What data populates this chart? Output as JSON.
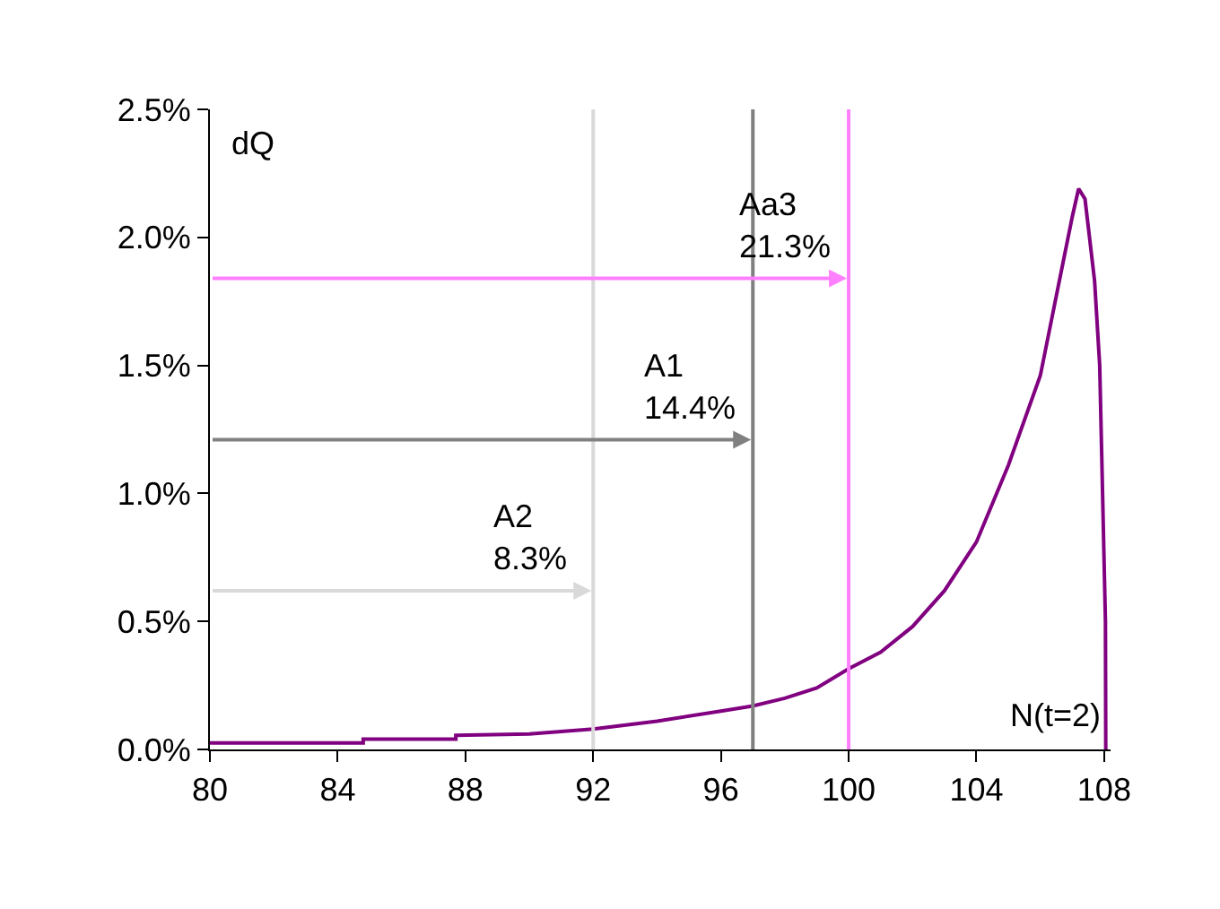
{
  "chart_data": {
    "type": "line",
    "x": [
      80,
      84.8,
      84.8,
      87.7,
      87.7,
      90,
      92,
      94,
      96,
      97,
      98,
      99,
      100,
      101,
      102,
      103,
      104,
      105,
      106,
      106.5,
      107,
      107.2,
      107.4,
      107.7,
      107.86,
      108.04,
      108.05
    ],
    "series": [
      {
        "color": "#800080",
        "values": [
          0.025,
          0.025,
          0.04,
          0.04,
          0.055,
          0.06,
          0.08,
          0.11,
          0.15,
          0.17,
          0.2,
          0.24,
          0.315,
          0.38,
          0.48,
          0.62,
          0.81,
          1.11,
          1.46,
          1.77,
          2.08,
          2.19,
          2.15,
          1.83,
          1.5,
          0.5,
          0
        ]
      }
    ],
    "xlim": [
      80,
      108.2
    ],
    "xticks": [
      80,
      84,
      88,
      92,
      96,
      100,
      104,
      108
    ],
    "ylim": [
      0,
      2.5
    ],
    "yticks": [
      {
        "value": 0,
        "label": "0.0%"
      },
      {
        "value": 0.5,
        "label": "0.5%"
      },
      {
        "value": 1,
        "label": "1.0%"
      },
      {
        "value": 1.5,
        "label": "1.5%"
      },
      {
        "value": 2,
        "label": "2.0%"
      },
      {
        "value": 2.5,
        "label": "2.5%"
      }
    ],
    "marker": "none",
    "line_style": "solid",
    "ref_lines": [
      {
        "axis": "x",
        "value": 92,
        "color": "#d9d9d9"
      },
      {
        "axis": "x",
        "value": 97,
        "color": "#808080"
      },
      {
        "axis": "x",
        "value": 100,
        "color": "#ff80ff"
      }
    ],
    "annotations": [
      "dQ",
      "N(t=2)",
      {
        "text": "A2\n8.3%",
        "x": 92,
        "y": 0.62
      },
      {
        "text": "A1\n14.4%",
        "x": 97,
        "y": 1.21
      },
      {
        "text": "Aa3\n21.3%",
        "x": 100,
        "y": 1.84
      }
    ]
  }
}
